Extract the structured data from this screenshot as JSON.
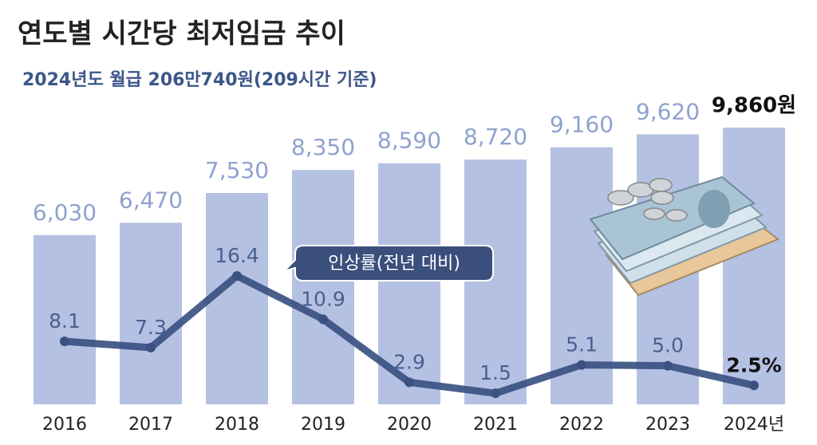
{
  "chart_data": {
    "type": "bar-line",
    "title": "연도별 시간당 최저임금 추이",
    "subtitle": "2024년도 월급 206만740원(209시간 기준)",
    "categories": [
      "2016",
      "2017",
      "2018",
      "2019",
      "2020",
      "2021",
      "2022",
      "2023",
      "2024년"
    ],
    "series": [
      {
        "type": "bar",
        "color": "#b4c1e2",
        "values": [
          6030,
          6470,
          7530,
          8350,
          8590,
          8720,
          9160,
          9620,
          9860
        ],
        "value_labels": [
          "6,030",
          "6,470",
          "7,530",
          "8,350",
          "8,590",
          "8,720",
          "9,160",
          "9,620",
          "9,860원"
        ]
      },
      {
        "type": "line",
        "name": "인상률(전년 대비)",
        "color": "#3a5182",
        "values": [
          8.1,
          7.3,
          16.4,
          10.9,
          2.9,
          1.5,
          5.1,
          5.0,
          2.5
        ],
        "value_labels": [
          "8.1",
          "7.3",
          "16.4",
          "10.9",
          "2.9",
          "1.5",
          "5.1",
          "5.0",
          "2.5%"
        ]
      }
    ]
  }
}
